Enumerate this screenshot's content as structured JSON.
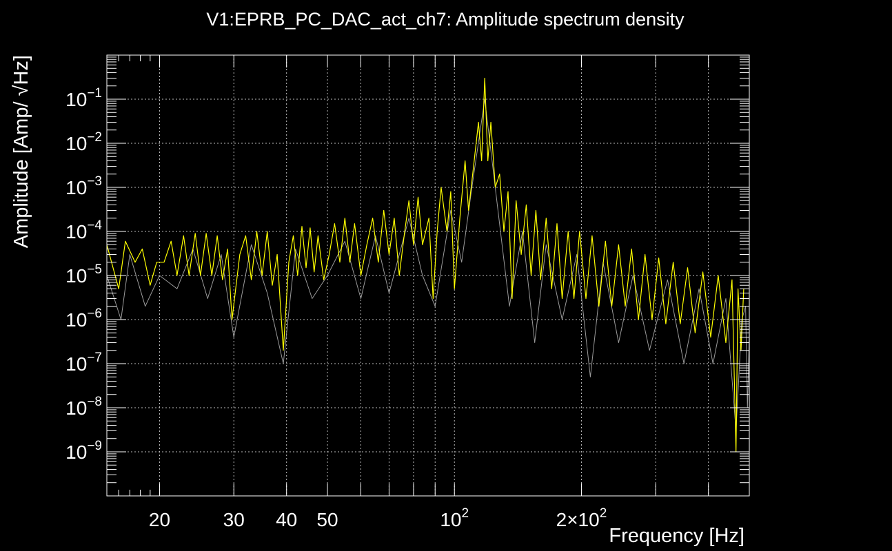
{
  "chart_data": {
    "type": "line",
    "title": "V1:EPRB_PC_DAC_act_ch7: Amplitude spectrum density",
    "xlabel": "Frequency [Hz]",
    "ylabel": "Amplitude [Amp/ √Hz]",
    "xscale": "log",
    "yscale": "log",
    "xlim": [
      15,
      500
    ],
    "ylim": [
      1e-10,
      1
    ],
    "grid": true,
    "background_color": "#000000",
    "frame_color": "#ffffff",
    "x_tick_labels": [
      {
        "value": 20,
        "label": "20"
      },
      {
        "value": 30,
        "label": "30"
      },
      {
        "value": 40,
        "label": "40"
      },
      {
        "value": 50,
        "label": "50"
      },
      {
        "value": 100,
        "mantissa": "",
        "base": "10",
        "exp": "2"
      },
      {
        "value": 200,
        "mantissa": "2×",
        "base": "10",
        "exp": "2"
      }
    ],
    "y_tick_labels": [
      {
        "value": 0.1,
        "base": "10",
        "exp": "−1"
      },
      {
        "value": 0.01,
        "base": "10",
        "exp": "−2"
      },
      {
        "value": 0.001,
        "base": "10",
        "exp": "−3"
      },
      {
        "value": 0.0001,
        "base": "10",
        "exp": "−4"
      },
      {
        "value": 1e-05,
        "base": "10",
        "exp": "−5"
      },
      {
        "value": 1e-06,
        "base": "10",
        "exp": "−6"
      },
      {
        "value": 1e-07,
        "base": "10",
        "exp": "−7"
      },
      {
        "value": 1e-08,
        "base": "10",
        "exp": "−8"
      },
      {
        "value": 1e-09,
        "base": "10",
        "exp": "−9"
      }
    ],
    "series": [
      {
        "color": "#ffff00",
        "line_width": 1.2,
        "points": [
          [
            15,
            5e-05
          ],
          [
            16,
            5e-06
          ],
          [
            16.6,
            6e-05
          ],
          [
            17.5,
            2e-05
          ],
          [
            18.2,
            4e-05
          ],
          [
            19,
            6e-06
          ],
          [
            19.7,
            2e-05
          ],
          [
            20.5,
            2e-05
          ],
          [
            21.3,
            6e-05
          ],
          [
            22,
            1e-05
          ],
          [
            22.8,
            8e-05
          ],
          [
            23.5,
            1e-05
          ],
          [
            24.3,
            9e-05
          ],
          [
            25,
            1e-05
          ],
          [
            25.8,
            9e-05
          ],
          [
            26.6,
            1e-05
          ],
          [
            27.4,
            8e-05
          ],
          [
            28.2,
            8e-06
          ],
          [
            29,
            4e-05
          ],
          [
            29.7,
            1e-06
          ],
          [
            30.3,
            5e-06
          ],
          [
            31,
            3e-05
          ],
          [
            32,
            8e-05
          ],
          [
            33,
            8e-06
          ],
          [
            34,
            0.0001
          ],
          [
            35,
            1e-05
          ],
          [
            36,
            0.0001
          ],
          [
            37,
            6e-06
          ],
          [
            38,
            3e-05
          ],
          [
            39.3,
            2e-07
          ],
          [
            40.5,
            2e-05
          ],
          [
            41.5,
            8e-05
          ],
          [
            42.5,
            1e-05
          ],
          [
            43.5,
            0.00013
          ],
          [
            44.5,
            1.5e-05
          ],
          [
            45.5,
            0.00012
          ],
          [
            46.5,
            1.2e-05
          ],
          [
            47.5,
            8e-05
          ],
          [
            49,
            8e-06
          ],
          [
            50.5,
            3e-05
          ],
          [
            52,
            0.00015
          ],
          [
            53.5,
            2e-05
          ],
          [
            55,
            0.0002
          ],
          [
            56.5,
            2e-05
          ],
          [
            58,
            0.00015
          ],
          [
            60,
            1e-05
          ],
          [
            62,
            5e-05
          ],
          [
            64,
            0.0002
          ],
          [
            66,
            2e-05
          ],
          [
            68,
            0.0003
          ],
          [
            70,
            3e-05
          ],
          [
            72,
            0.0002
          ],
          [
            74,
            1e-05
          ],
          [
            76,
            8e-05
          ],
          [
            78,
            0.0005
          ],
          [
            80,
            5e-05
          ],
          [
            82,
            0.0006
          ],
          [
            84,
            5e-05
          ],
          [
            87,
            0.0002
          ],
          [
            89,
            3e-06
          ],
          [
            91,
            0.0001
          ],
          [
            93,
            0.001
          ],
          [
            96,
            0.0001
          ],
          [
            98,
            0.0008
          ],
          [
            100,
            5e-06
          ],
          [
            103,
            0.0002
          ],
          [
            106,
            0.004
          ],
          [
            108,
            0.0003
          ],
          [
            111,
            0.003
          ],
          [
            114,
            0.03
          ],
          [
            116,
            0.004
          ],
          [
            118,
            0.3
          ],
          [
            120,
            0.004
          ],
          [
            122,
            0.03
          ],
          [
            125,
            0.001
          ],
          [
            128,
            0.002
          ],
          [
            131,
            0.0001
          ],
          [
            134,
            0.0008
          ],
          [
            137,
            3e-06
          ],
          [
            140,
            0.0005
          ],
          [
            144,
            3e-05
          ],
          [
            148,
            0.0004
          ],
          [
            152,
            1e-05
          ],
          [
            156,
            0.0003
          ],
          [
            160,
            8e-06
          ],
          [
            165,
            0.0002
          ],
          [
            170,
            5e-06
          ],
          [
            175,
            0.00015
          ],
          [
            180,
            3e-06
          ],
          [
            186,
            0.0001
          ],
          [
            192,
            3e-06
          ],
          [
            198,
            0.0001
          ],
          [
            205,
            3e-06
          ],
          [
            212,
            8e-05
          ],
          [
            220,
            2e-06
          ],
          [
            228,
            6e-05
          ],
          [
            236,
            2e-06
          ],
          [
            245,
            5e-05
          ],
          [
            254,
            2e-06
          ],
          [
            263,
            4e-05
          ],
          [
            273,
            1e-06
          ],
          [
            283,
            3e-05
          ],
          [
            294,
            1e-06
          ],
          [
            305,
            2.5e-05
          ],
          [
            317,
            8e-07
          ],
          [
            330,
            2e-05
          ],
          [
            343,
            8e-07
          ],
          [
            357,
            1.5e-05
          ],
          [
            372,
            5e-07
          ],
          [
            388,
            1.2e-05
          ],
          [
            405,
            4e-07
          ],
          [
            422,
            1e-05
          ],
          [
            440,
            3e-07
          ],
          [
            455,
            8e-06
          ],
          [
            465,
            1e-09
          ],
          [
            470,
            5e-06
          ],
          [
            478,
            2e-07
          ],
          [
            485,
            5e-06
          ]
        ]
      },
      {
        "color": "#9a9a9a",
        "line_width": 1,
        "points": [
          [
            15,
            1e-05
          ],
          [
            16.2,
            1e-06
          ],
          [
            17,
            3e-05
          ],
          [
            18.5,
            2e-06
          ],
          [
            20,
            1e-05
          ],
          [
            22,
            5e-06
          ],
          [
            24,
            4e-05
          ],
          [
            26,
            3e-06
          ],
          [
            28,
            3e-05
          ],
          [
            30,
            4e-07
          ],
          [
            33,
            5e-05
          ],
          [
            36,
            4e-06
          ],
          [
            39.3,
            1e-07
          ],
          [
            42,
            4e-05
          ],
          [
            46,
            3e-06
          ],
          [
            50,
            1e-05
          ],
          [
            55,
            6e-05
          ],
          [
            60,
            3e-06
          ],
          [
            65,
            8e-05
          ],
          [
            70,
            4e-06
          ],
          [
            78,
            0.0002
          ],
          [
            84,
            1e-05
          ],
          [
            90,
            2e-06
          ],
          [
            98,
            0.0003
          ],
          [
            104,
            2e-05
          ],
          [
            110,
            0.001
          ],
          [
            118,
            0.1
          ],
          [
            126,
            0.0005
          ],
          [
            135,
            2e-06
          ],
          [
            145,
            0.0001
          ],
          [
            155,
            3e-07
          ],
          [
            165,
            5e-05
          ],
          [
            180,
            1e-06
          ],
          [
            195,
            3e-05
          ],
          [
            210,
            5e-08
          ],
          [
            225,
            2e-05
          ],
          [
            245,
            3e-07
          ],
          [
            265,
            1e-05
          ],
          [
            290,
            2e-07
          ],
          [
            320,
            8e-06
          ],
          [
            350,
            1e-07
          ],
          [
            380,
            5e-06
          ],
          [
            410,
            1e-07
          ],
          [
            440,
            3e-06
          ],
          [
            465,
            3e-09
          ],
          [
            480,
            1e-06
          ],
          [
            490,
            2e-06
          ],
          [
            495,
            1e-08
          ],
          [
            500,
            5e-07
          ]
        ]
      }
    ]
  }
}
